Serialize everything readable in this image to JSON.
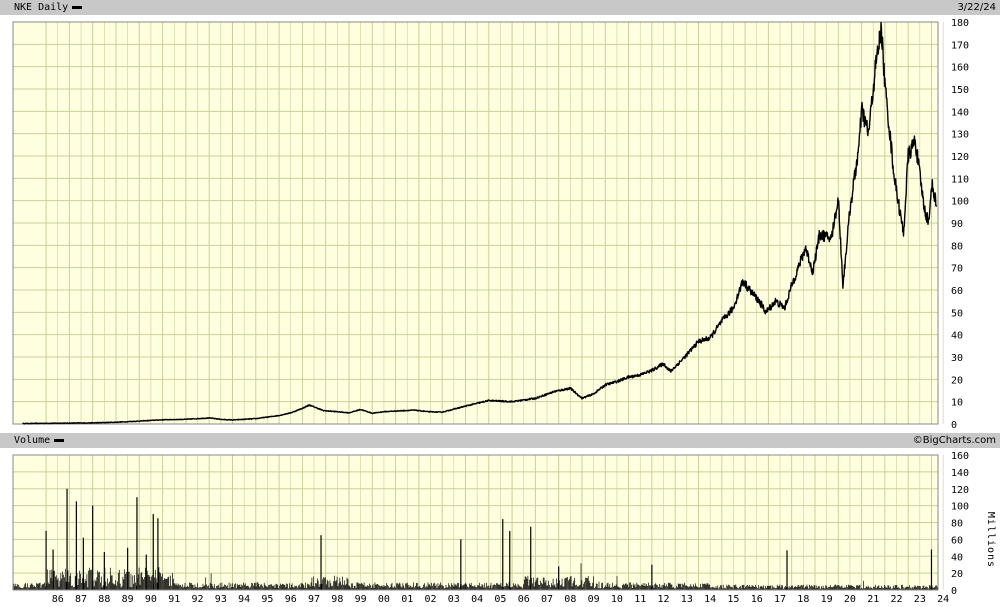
{
  "header": {
    "title": "NKE Daily",
    "date": "3/22/24"
  },
  "volume_header": {
    "title": "Volume",
    "credit": "©BigCharts.com"
  },
  "colors": {
    "plot_bg": "#ffffe0",
    "grid": "#c8d098",
    "bar_bg": "#c8c8c8",
    "line": "#000000"
  },
  "chart_data": [
    {
      "type": "line",
      "series_label": "NKE Daily",
      "ylim": [
        0,
        180
      ],
      "yticks": [
        0,
        10,
        20,
        30,
        40,
        50,
        60,
        70,
        80,
        90,
        100,
        110,
        120,
        130,
        140,
        150,
        160,
        170,
        180
      ],
      "x_tick_labels": [
        "86",
        "87",
        "88",
        "89",
        "90",
        "91",
        "92",
        "93",
        "94",
        "95",
        "96",
        "97",
        "98",
        "99",
        "00",
        "01",
        "02",
        "03",
        "04",
        "05",
        "06",
        "07",
        "08",
        "09",
        "10",
        "11",
        "12",
        "13",
        "14",
        "15",
        "16",
        "17",
        "18",
        "19",
        "20",
        "21",
        "22",
        "23",
        "24"
      ],
      "points": [
        [
          "1985.0",
          0.2
        ],
        [
          "1986.0",
          0.3
        ],
        [
          "1987.0",
          0.4
        ],
        [
          "1988.0",
          0.5
        ],
        [
          "1989.0",
          0.8
        ],
        [
          "1990.0",
          1.3
        ],
        [
          "1991.0",
          1.9
        ],
        [
          "1992.0",
          2.1
        ],
        [
          "1993.0",
          2.7
        ],
        [
          "1993.6",
          2.0
        ],
        [
          "1994.0",
          1.8
        ],
        [
          "1995.0",
          2.4
        ],
        [
          "1996.0",
          3.8
        ],
        [
          "1996.5",
          5.0
        ],
        [
          "1997.0",
          7.0
        ],
        [
          "1997.3",
          8.5
        ],
        [
          "1997.9",
          6.0
        ],
        [
          "1998.5",
          5.5
        ],
        [
          "1999.0",
          5.0
        ],
        [
          "1999.5",
          6.5
        ],
        [
          "2000.0",
          4.8
        ],
        [
          "2000.5",
          5.5
        ],
        [
          "2001.0",
          5.8
        ],
        [
          "2001.8",
          6.2
        ],
        [
          "2002.4",
          5.5
        ],
        [
          "2003.0",
          5.3
        ],
        [
          "2004.0",
          8.0
        ],
        [
          "2005.0",
          10.5
        ],
        [
          "2006.0",
          10.0
        ],
        [
          "2007.0",
          11.5
        ],
        [
          "2007.8",
          14.5
        ],
        [
          "2008.5",
          16.0
        ],
        [
          "2009.0",
          11.5
        ],
        [
          "2009.5",
          13.5
        ],
        [
          "2010.0",
          17.5
        ],
        [
          "2010.5",
          19.0
        ],
        [
          "2011.0",
          21.0
        ],
        [
          "2011.5",
          22.0
        ],
        [
          "2012.0",
          24.0
        ],
        [
          "2012.5",
          27.0
        ],
        [
          "2012.8",
          23.5
        ],
        [
          "2013.5",
          31.0
        ],
        [
          "2014.0",
          37.0
        ],
        [
          "2014.5",
          38.5
        ],
        [
          "2015.0",
          46.0
        ],
        [
          "2015.5",
          52.0
        ],
        [
          "2015.9",
          64.0
        ],
        [
          "2016.2",
          60.0
        ],
        [
          "2016.6",
          55.0
        ],
        [
          "2016.9",
          50.0
        ],
        [
          "2017.3",
          55.0
        ],
        [
          "2017.7",
          52.0
        ],
        [
          "2018.0",
          62.0
        ],
        [
          "2018.6",
          79.0
        ],
        [
          "2018.9",
          68.0
        ],
        [
          "2019.2",
          85.0
        ],
        [
          "2019.7",
          83.0
        ],
        [
          "2020.0",
          101.0
        ],
        [
          "2020.2",
          62.0
        ],
        [
          "2020.5",
          96.0
        ],
        [
          "2020.9",
          125.0
        ],
        [
          "2021.0",
          141.0
        ],
        [
          "2021.3",
          130.0
        ],
        [
          "2021.6",
          160.0
        ],
        [
          "2021.85",
          177.0
        ],
        [
          "2022.0",
          152.0
        ],
        [
          "2022.4",
          111.0
        ],
        [
          "2022.8",
          85.0
        ],
        [
          "2023.0",
          120.0
        ],
        [
          "2023.3",
          127.0
        ],
        [
          "2023.7",
          96.0
        ],
        [
          "2023.9",
          90.0
        ],
        [
          "2024.0",
          108.0
        ],
        [
          "2024.22",
          98.0
        ]
      ]
    },
    {
      "type": "bar",
      "series_label": "Volume",
      "ylabel": "Millions",
      "ylim": [
        0,
        160
      ],
      "yticks": [
        0,
        20,
        40,
        60,
        80,
        100,
        120,
        140,
        160
      ],
      "spikes": [
        [
          "1986.0",
          70
        ],
        [
          "1986.3",
          48
        ],
        [
          "1986.9",
          120
        ],
        [
          "1987.3",
          105
        ],
        [
          "1987.6",
          62
        ],
        [
          "1988.0",
          100
        ],
        [
          "1988.5",
          45
        ],
        [
          "1989.5",
          50
        ],
        [
          "1989.9",
          110
        ],
        [
          "1990.3",
          42
        ],
        [
          "1990.6",
          90
        ],
        [
          "1990.8",
          85
        ],
        [
          "1997.8",
          65
        ],
        [
          "2003.8",
          60
        ],
        [
          "2005.6",
          84
        ],
        [
          "2005.9",
          70
        ],
        [
          "2006.8",
          75
        ],
        [
          "2008.0",
          28
        ],
        [
          "2012.0",
          30
        ],
        [
          "2017.8",
          47
        ],
        [
          "2024.0",
          48
        ]
      ]
    }
  ]
}
